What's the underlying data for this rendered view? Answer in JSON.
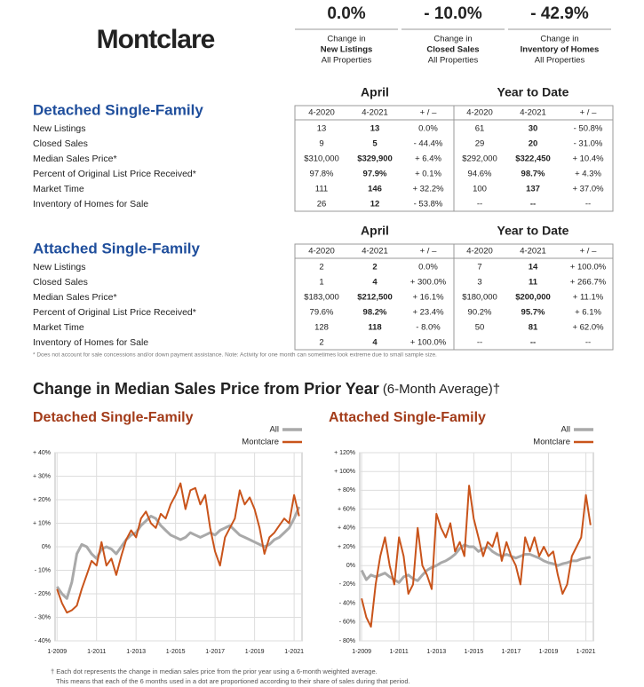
{
  "header": {
    "title": "Montclare",
    "stats": [
      {
        "value": "0.0%",
        "lines": [
          "Change in",
          "New Listings",
          "All Properties"
        ]
      },
      {
        "value": "- 10.0%",
        "lines": [
          "Change in",
          "Closed Sales",
          "All Properties"
        ]
      },
      {
        "value": "- 42.9%",
        "lines": [
          "Change in",
          "Inventory of Homes",
          "All Properties"
        ]
      }
    ]
  },
  "tables": [
    {
      "title": "Detached Single-Family",
      "groups": [
        "April",
        "Year to Date"
      ],
      "columns": [
        "4-2020",
        "4-2021",
        "+ / –",
        "4-2020",
        "4-2021",
        "+ / –"
      ],
      "rows": [
        {
          "label": "New Listings",
          "cells": [
            "13",
            "13",
            "0.0%",
            "61",
            "30",
            "- 50.8%"
          ]
        },
        {
          "label": "Closed Sales",
          "cells": [
            "9",
            "5",
            "- 44.4%",
            "29",
            "20",
            "- 31.0%"
          ]
        },
        {
          "label": "Median Sales Price*",
          "cells": [
            "$310,000",
            "$329,900",
            "+ 6.4%",
            "$292,000",
            "$322,450",
            "+ 10.4%"
          ]
        },
        {
          "label": "Percent of Original List Price Received*",
          "cells": [
            "97.8%",
            "97.9%",
            "+ 0.1%",
            "94.6%",
            "98.7%",
            "+ 4.3%"
          ]
        },
        {
          "label": "Market Time",
          "cells": [
            "111",
            "146",
            "+ 32.2%",
            "100",
            "137",
            "+ 37.0%"
          ]
        },
        {
          "label": "Inventory of Homes for Sale",
          "cells": [
            "26",
            "12",
            "- 53.8%",
            "--",
            "--",
            "--"
          ]
        }
      ]
    },
    {
      "title": "Attached Single-Family",
      "groups": [
        "April",
        "Year to Date"
      ],
      "columns": [
        "4-2020",
        "4-2021",
        "+ / –",
        "4-2020",
        "4-2021",
        "+ / –"
      ],
      "rows": [
        {
          "label": "New Listings",
          "cells": [
            "2",
            "2",
            "0.0%",
            "7",
            "14",
            "+ 100.0%"
          ]
        },
        {
          "label": "Closed Sales",
          "cells": [
            "1",
            "4",
            "+ 300.0%",
            "3",
            "11",
            "+ 266.7%"
          ]
        },
        {
          "label": "Median Sales Price*",
          "cells": [
            "$183,000",
            "$212,500",
            "+ 16.1%",
            "$180,000",
            "$200,000",
            "+ 11.1%"
          ]
        },
        {
          "label": "Percent of Original List Price Received*",
          "cells": [
            "79.6%",
            "98.2%",
            "+ 23.4%",
            "90.2%",
            "95.7%",
            "+ 6.1%"
          ]
        },
        {
          "label": "Market Time",
          "cells": [
            "128",
            "118",
            "- 8.0%",
            "50",
            "81",
            "+ 62.0%"
          ]
        },
        {
          "label": "Inventory of Homes for Sale",
          "cells": [
            "2",
            "4",
            "+ 100.0%",
            "--",
            "--",
            "--"
          ]
        }
      ]
    }
  ],
  "footnote": "* Does not account for sale concessions and/or down payment assistance. Note: Activity for one month can sometimes look extreme due to small sample size.",
  "section_title": {
    "main": "Change in Median Sales Price from Prior Year",
    "sub": "(6-Month Average)†"
  },
  "chart_note": [
    "† Each dot represents the change in median sales price from the prior year using a 6-month weighted average.",
    "This means that each of the 6 months used in a dot are proportioned according to their share of sales during that period."
  ],
  "chart_data": [
    {
      "type": "line",
      "title": "Detached Single-Family",
      "grid": true,
      "x": [
        2009,
        2009.25,
        2009.5,
        2009.75,
        2010,
        2010.25,
        2010.5,
        2010.75,
        2011,
        2011.25,
        2011.5,
        2011.75,
        2012,
        2012.25,
        2012.5,
        2012.75,
        2013,
        2013.25,
        2013.5,
        2013.75,
        2014,
        2014.25,
        2014.5,
        2014.75,
        2015,
        2015.25,
        2015.5,
        2015.75,
        2016,
        2016.25,
        2016.5,
        2016.75,
        2017,
        2017.25,
        2017.5,
        2017.75,
        2018,
        2018.25,
        2018.5,
        2018.75,
        2019,
        2019.25,
        2019.5,
        2019.75,
        2020,
        2020.25,
        2020.5,
        2020.75,
        2021,
        2021.25
      ],
      "xlim": [
        2008.9,
        2021.4
      ],
      "xticks": [
        {
          "value": 2009,
          "label": "1-2009"
        },
        {
          "value": 2011,
          "label": "1-2011"
        },
        {
          "value": 2013,
          "label": "1-2013"
        },
        {
          "value": 2015,
          "label": "1-2015"
        },
        {
          "value": 2017,
          "label": "1-2017"
        },
        {
          "value": 2019,
          "label": "1-2019"
        },
        {
          "value": 2021,
          "label": "1-2021"
        }
      ],
      "ylim": [
        -40,
        40
      ],
      "yticks": [
        {
          "value": -40,
          "label": "- 40%"
        },
        {
          "value": -30,
          "label": "- 30%"
        },
        {
          "value": -20,
          "label": "- 20%"
        },
        {
          "value": -10,
          "label": "- 10%"
        },
        {
          "value": 0,
          "label": "0%"
        },
        {
          "value": 10,
          "label": "+ 10%"
        },
        {
          "value": 20,
          "label": "+ 20%"
        },
        {
          "value": 30,
          "label": "+ 30%"
        },
        {
          "value": 40,
          "label": "+ 40%"
        }
      ],
      "series": [
        {
          "name": "All",
          "color": "#a9a9a9",
          "values": [
            -17,
            -20,
            -22,
            -15,
            -3,
            1,
            0,
            -3,
            -5,
            -1,
            0,
            -1,
            -3,
            0,
            3,
            5,
            6,
            9,
            11,
            13,
            12,
            9,
            7,
            5,
            4,
            3,
            4,
            6,
            5,
            4,
            5,
            6,
            5,
            7,
            8,
            9,
            7,
            5,
            4,
            3,
            2,
            1,
            0,
            1,
            3,
            4,
            6,
            8,
            12,
            17
          ]
        },
        {
          "name": "Montclare",
          "color": "#c9541b",
          "values": [
            -18,
            -24,
            -28,
            -27,
            -25,
            -18,
            -12,
            -6,
            -8,
            2,
            -8,
            -5,
            -12,
            -4,
            3,
            7,
            4,
            12,
            15,
            10,
            8,
            14,
            12,
            18,
            22,
            27,
            16,
            24,
            25,
            18,
            22,
            8,
            -2,
            -8,
            4,
            8,
            12,
            24,
            18,
            21,
            16,
            8,
            -3,
            4,
            6,
            9,
            12,
            10,
            22,
            13
          ]
        }
      ]
    },
    {
      "type": "line",
      "title": "Attached Single-Family",
      "grid": true,
      "x": [
        2009,
        2009.25,
        2009.5,
        2009.75,
        2010,
        2010.25,
        2010.5,
        2010.75,
        2011,
        2011.25,
        2011.5,
        2011.75,
        2012,
        2012.25,
        2012.5,
        2012.75,
        2013,
        2013.25,
        2013.5,
        2013.75,
        2014,
        2014.25,
        2014.5,
        2014.75,
        2015,
        2015.25,
        2015.5,
        2015.75,
        2016,
        2016.25,
        2016.5,
        2016.75,
        2017,
        2017.25,
        2017.5,
        2017.75,
        2018,
        2018.25,
        2018.5,
        2018.75,
        2019,
        2019.25,
        2019.5,
        2019.75,
        2020,
        2020.25,
        2020.5,
        2020.75,
        2021,
        2021.25
      ],
      "xlim": [
        2008.9,
        2021.4
      ],
      "xticks": [
        {
          "value": 2009,
          "label": "1-2009"
        },
        {
          "value": 2011,
          "label": "1-2011"
        },
        {
          "value": 2013,
          "label": "1-2013"
        },
        {
          "value": 2015,
          "label": "1-2015"
        },
        {
          "value": 2017,
          "label": "1-2017"
        },
        {
          "value": 2019,
          "label": "1-2019"
        },
        {
          "value": 2021,
          "label": "1-2021"
        }
      ],
      "ylim": [
        -80,
        120
      ],
      "yticks": [
        {
          "value": -80,
          "label": "- 80%"
        },
        {
          "value": -60,
          "label": "- 60%"
        },
        {
          "value": -40,
          "label": "- 40%"
        },
        {
          "value": -20,
          "label": "- 20%"
        },
        {
          "value": 0,
          "label": "0%"
        },
        {
          "value": 20,
          "label": "+ 20%"
        },
        {
          "value": 40,
          "label": "+ 40%"
        },
        {
          "value": 60,
          "label": "+ 60%"
        },
        {
          "value": 80,
          "label": "+ 80%"
        },
        {
          "value": 100,
          "label": "+ 100%"
        },
        {
          "value": 120,
          "label": "+ 120%"
        }
      ],
      "series": [
        {
          "name": "All",
          "color": "#a9a9a9",
          "values": [
            -5,
            -15,
            -10,
            -12,
            -10,
            -8,
            -12,
            -15,
            -18,
            -12,
            -10,
            -14,
            -16,
            -10,
            -5,
            -2,
            0,
            3,
            5,
            8,
            12,
            18,
            22,
            20,
            20,
            15,
            18,
            20,
            15,
            12,
            10,
            12,
            10,
            8,
            10,
            12,
            12,
            10,
            8,
            5,
            3,
            2,
            0,
            2,
            3,
            5,
            5,
            7,
            8,
            9
          ]
        },
        {
          "name": "Montclare",
          "color": "#c9541b",
          "values": [
            -35,
            -55,
            -65,
            -20,
            10,
            30,
            0,
            -20,
            30,
            10,
            -30,
            -20,
            40,
            0,
            -10,
            -25,
            55,
            40,
            30,
            45,
            15,
            25,
            10,
            85,
            50,
            30,
            10,
            25,
            20,
            35,
            5,
            25,
            10,
            0,
            -20,
            30,
            15,
            30,
            10,
            20,
            10,
            15,
            -10,
            -30,
            -20,
            10,
            20,
            30,
            75,
            43
          ]
        }
      ]
    }
  ]
}
